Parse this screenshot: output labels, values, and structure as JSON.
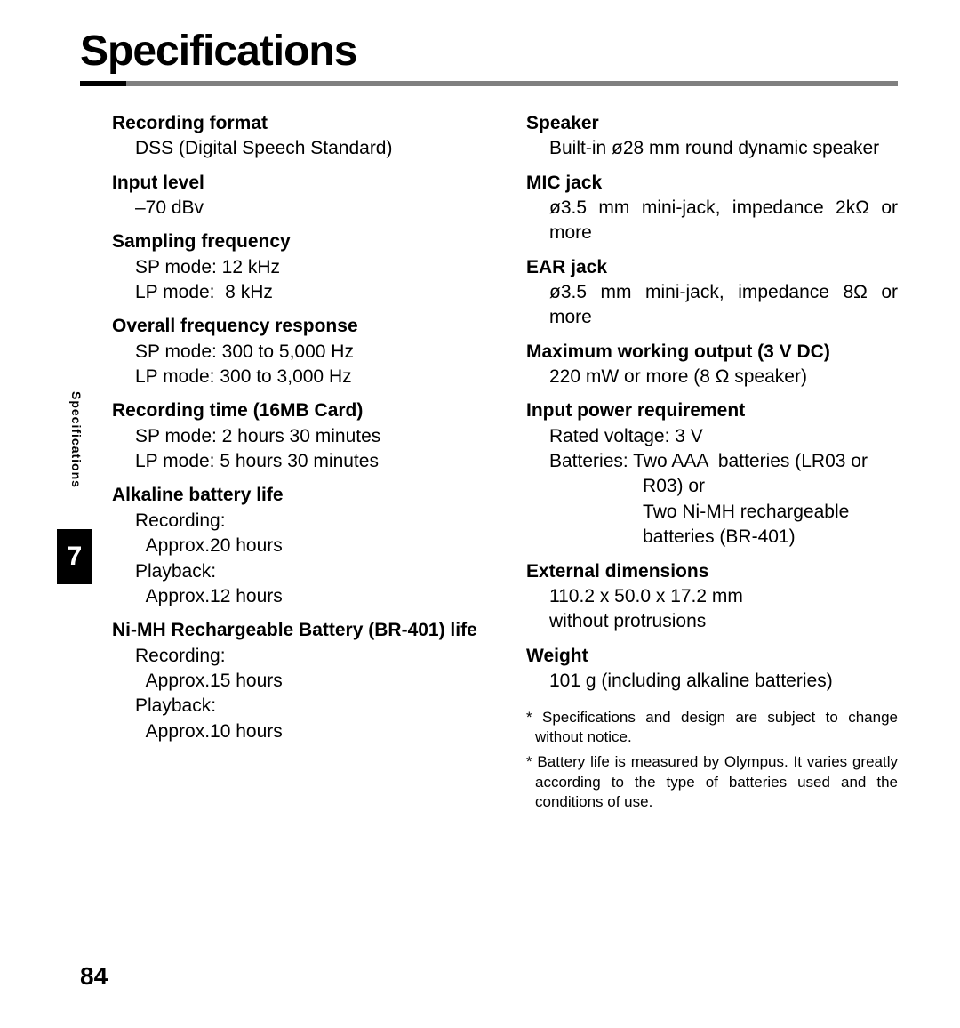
{
  "title": "Specifications",
  "chapter": "7",
  "page_number": "84",
  "side_label": "Specifications",
  "colors": {
    "rule_gray": "#808080",
    "rule_dark": "#000000",
    "bg": "#ffffff",
    "text": "#000000"
  },
  "left_specs": [
    {
      "label": "Recording format",
      "value": "DSS (Digital Speech Standard)"
    },
    {
      "label": "Input level",
      "value": "–70 dBv"
    },
    {
      "label": "Sampling frequency",
      "value": "SP mode: 12 kHz\nLP mode:  8 kHz"
    },
    {
      "label": "Overall frequency response",
      "value": "SP mode: 300 to 5,000 Hz\nLP mode: 300 to 3,000 Hz"
    },
    {
      "label": "Recording time (16MB Card)",
      "value": "SP mode: 2 hours 30 minutes\nLP mode: 5 hours 30 minutes"
    },
    {
      "label": "Alkaline battery life",
      "value": "Recording:\n  Approx.20 hours\nPlayback:\n  Approx.12 hours"
    },
    {
      "label": "Ni-MH Rechargeable Battery (BR-401) life",
      "value": "Recording:\n  Approx.15 hours\nPlayback:\n  Approx.10 hours"
    }
  ],
  "right_specs": [
    {
      "label": "Speaker",
      "value": "Built-in ø28 mm round dynamic speaker"
    },
    {
      "label": "MIC jack",
      "value": "ø3.5 mm mini-jack, impedance 2kΩ or more"
    },
    {
      "label": "EAR jack",
      "value": "ø3.5 mm mini-jack, impedance 8Ω or more"
    },
    {
      "label": "Maximum working output (3 V DC)",
      "value": "220 mW or more (8 Ω speaker)"
    },
    {
      "label": "Input power requirement",
      "value": "Rated voltage: 3 V\nBatteries: Two AAA  batteries (LR03 or\n                  R03) or\n                  Two Ni-MH rechargeable\n                  batteries (BR-401)"
    },
    {
      "label": "External dimensions",
      "value": "110.2 x 50.0 x 17.2 mm\nwithout protrusions"
    },
    {
      "label": "Weight",
      "value": "101 g (including alkaline batteries)"
    }
  ],
  "notes": [
    "* Specifications and design are subject to change without notice.",
    "* Battery life is measured by Olympus. It varies greatly according to the type of batteries used and the conditions of use."
  ]
}
